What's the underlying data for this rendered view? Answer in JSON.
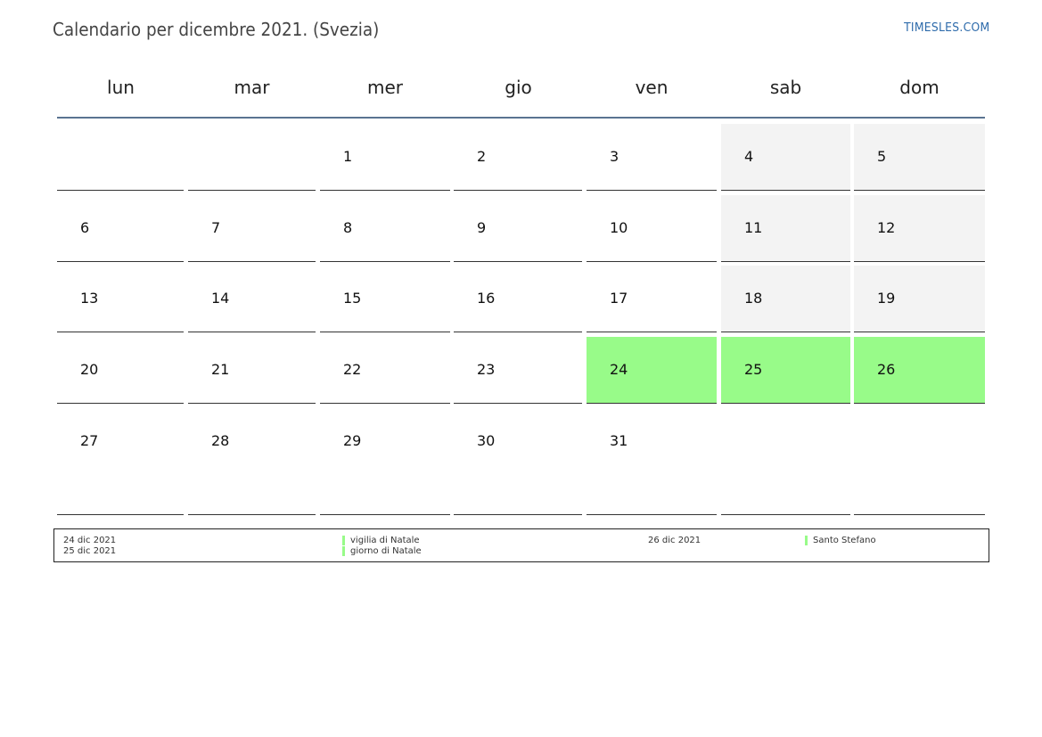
{
  "title": "Calendario per dicembre 2021. (Svezia)",
  "site": "TIMESLES.COM",
  "weekdays": [
    "lun",
    "mar",
    "mer",
    "gio",
    "ven",
    "sab",
    "dom"
  ],
  "colors": {
    "weekend": "#f3f3f3",
    "holiday": "#98fb89",
    "rule": "#5a7391",
    "site": "#2e6bab"
  },
  "weeks": [
    [
      "",
      "",
      "1",
      "2",
      "3",
      "4",
      "5"
    ],
    [
      "6",
      "7",
      "8",
      "9",
      "10",
      "11",
      "12"
    ],
    [
      "13",
      "14",
      "15",
      "16",
      "17",
      "18",
      "19"
    ],
    [
      "20",
      "21",
      "22",
      "23",
      "24",
      "25",
      "26"
    ],
    [
      "27",
      "28",
      "29",
      "30",
      "31",
      "",
      ""
    ]
  ],
  "holidays": [
    "24",
    "25",
    "26"
  ],
  "legend": [
    {
      "date": "24 dic 2021",
      "name": "vigilia di Natale"
    },
    {
      "date": "25 dic 2021",
      "name": "giorno di Natale"
    },
    {
      "date": "26 dic 2021",
      "name": "Santo Stefano"
    }
  ]
}
